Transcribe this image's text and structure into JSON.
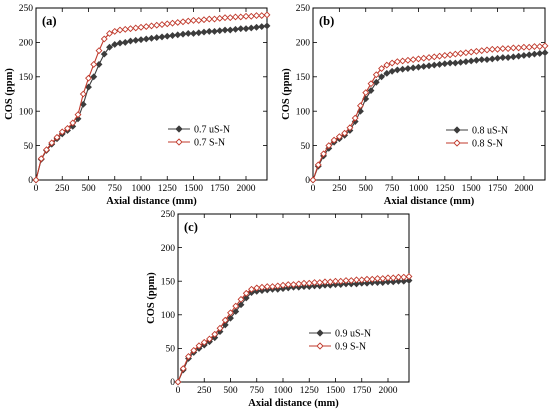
{
  "chart_data": [
    {
      "type": "line",
      "panel_label": "(a)",
      "xlabel": "Axial distance (mm)",
      "ylabel": "COS (ppm)",
      "xlim": [
        0,
        2200
      ],
      "ylim": [
        0,
        250
      ],
      "xticks": [
        0,
        250,
        500,
        750,
        1000,
        1250,
        1500,
        1750,
        2000
      ],
      "yticks": [
        0,
        50,
        100,
        150,
        200,
        250
      ],
      "grid": false,
      "legend_position": "right-middle",
      "series": [
        {
          "name": "0.7 uS-N",
          "marker": "filled-diamond",
          "color": "#3c3c3c",
          "x": [
            0,
            50,
            100,
            150,
            200,
            250,
            300,
            350,
            400,
            450,
            500,
            550,
            600,
            650,
            700,
            750,
            800,
            850,
            900,
            950,
            1000,
            1050,
            1100,
            1150,
            1200,
            1250,
            1300,
            1350,
            1400,
            1450,
            1500,
            1550,
            1600,
            1650,
            1700,
            1750,
            1800,
            1850,
            1900,
            1950,
            2000,
            2050,
            2100,
            2150,
            2200
          ],
          "y": [
            0,
            30,
            43,
            52,
            60,
            67,
            72,
            78,
            89,
            110,
            135,
            150,
            168,
            183,
            193,
            197,
            199,
            200,
            202,
            203,
            204,
            205,
            206,
            207,
            208,
            209,
            210,
            211,
            212,
            213,
            213,
            214,
            215,
            216,
            216,
            217,
            218,
            218,
            219,
            220,
            220,
            221,
            222,
            223,
            224
          ]
        },
        {
          "name": "0.7 S-N",
          "marker": "open-diamond",
          "color": "#c0392b",
          "x": [
            0,
            50,
            100,
            150,
            200,
            250,
            300,
            350,
            400,
            450,
            500,
            550,
            600,
            650,
            700,
            750,
            800,
            850,
            900,
            950,
            1000,
            1050,
            1100,
            1150,
            1200,
            1250,
            1300,
            1350,
            1400,
            1450,
            1500,
            1550,
            1600,
            1650,
            1700,
            1750,
            1800,
            1850,
            1900,
            1950,
            2000,
            2050,
            2100,
            2150,
            2200
          ],
          "y": [
            0,
            31,
            44,
            54,
            62,
            70,
            75,
            83,
            95,
            125,
            148,
            168,
            188,
            205,
            213,
            216,
            218,
            219,
            220,
            221,
            222,
            223,
            224,
            225,
            226,
            227,
            228,
            229,
            230,
            231,
            232,
            232,
            233,
            234,
            234,
            235,
            236,
            236,
            237,
            237,
            238,
            238,
            239,
            239,
            240
          ]
        }
      ]
    },
    {
      "type": "line",
      "panel_label": "(b)",
      "xlabel": "Axial distance (mm)",
      "ylabel": "COS (ppm)",
      "xlim": [
        0,
        2200
      ],
      "ylim": [
        0,
        250
      ],
      "xticks": [
        0,
        250,
        500,
        750,
        1000,
        1250,
        1500,
        1750,
        2000
      ],
      "yticks": [
        0,
        50,
        100,
        150,
        200,
        250
      ],
      "grid": false,
      "legend_position": "right-middle",
      "series": [
        {
          "name": "0.8 uS-N",
          "marker": "filled-diamond",
          "color": "#3c3c3c",
          "x": [
            0,
            50,
            100,
            150,
            200,
            250,
            300,
            350,
            400,
            450,
            500,
            550,
            600,
            650,
            700,
            750,
            800,
            850,
            900,
            950,
            1000,
            1050,
            1100,
            1150,
            1200,
            1250,
            1300,
            1350,
            1400,
            1450,
            1500,
            1550,
            1600,
            1650,
            1700,
            1750,
            1800,
            1850,
            1900,
            1950,
            2000,
            2050,
            2100,
            2150,
            2200
          ],
          "y": [
            0,
            20,
            35,
            46,
            55,
            60,
            65,
            72,
            85,
            100,
            118,
            130,
            142,
            150,
            155,
            158,
            160,
            161,
            162,
            163,
            164,
            165,
            166,
            167,
            168,
            169,
            170,
            170,
            171,
            172,
            173,
            174,
            175,
            175,
            176,
            177,
            178,
            178,
            179,
            180,
            181,
            182,
            183,
            184,
            185
          ]
        },
        {
          "name": "0.8 S-N",
          "marker": "open-diamond",
          "color": "#c0392b",
          "x": [
            0,
            50,
            100,
            150,
            200,
            250,
            300,
            350,
            400,
            450,
            500,
            550,
            600,
            650,
            700,
            750,
            800,
            850,
            900,
            950,
            1000,
            1050,
            1100,
            1150,
            1200,
            1250,
            1300,
            1350,
            1400,
            1450,
            1500,
            1550,
            1600,
            1650,
            1700,
            1750,
            1800,
            1850,
            1900,
            1950,
            2000,
            2050,
            2100,
            2150,
            2200
          ],
          "y": [
            0,
            22,
            38,
            50,
            58,
            63,
            68,
            76,
            90,
            108,
            127,
            140,
            153,
            162,
            167,
            170,
            172,
            173,
            174,
            175,
            176,
            177,
            178,
            179,
            180,
            181,
            182,
            183,
            184,
            185,
            186,
            187,
            188,
            189,
            190,
            190,
            191,
            191,
            192,
            192,
            193,
            193,
            194,
            194,
            195
          ]
        }
      ]
    },
    {
      "type": "line",
      "panel_label": "(c)",
      "xlabel": "Axial distance (mm)",
      "ylabel": "COS (ppm)",
      "xlim": [
        0,
        2200
      ],
      "ylim": [
        0,
        250
      ],
      "xticks": [
        0,
        250,
        500,
        750,
        1000,
        1250,
        1500,
        1750,
        2000
      ],
      "yticks": [
        0,
        50,
        100,
        150,
        200,
        250
      ],
      "grid": false,
      "legend_position": "right-middle",
      "series": [
        {
          "name": "0.9 uS-N",
          "marker": "filled-diamond",
          "color": "#3c3c3c",
          "x": [
            0,
            50,
            100,
            150,
            200,
            250,
            300,
            350,
            400,
            450,
            500,
            550,
            600,
            650,
            700,
            750,
            800,
            850,
            900,
            950,
            1000,
            1050,
            1100,
            1150,
            1200,
            1250,
            1300,
            1350,
            1400,
            1450,
            1500,
            1550,
            1600,
            1650,
            1700,
            1750,
            1800,
            1850,
            1900,
            1950,
            2000,
            2050,
            2100,
            2150,
            2200
          ],
          "y": [
            0,
            18,
            35,
            44,
            50,
            55,
            60,
            66,
            75,
            85,
            95,
            105,
            115,
            125,
            133,
            135,
            136,
            137,
            138,
            138,
            139,
            140,
            141,
            141,
            142,
            142,
            143,
            143,
            144,
            144,
            145,
            145,
            146,
            146,
            146,
            147,
            147,
            148,
            148,
            148,
            149,
            149,
            150,
            150,
            151
          ]
        },
        {
          "name": "0.9 S-N",
          "marker": "open-diamond",
          "color": "#c0392b",
          "x": [
            0,
            50,
            100,
            150,
            200,
            250,
            300,
            350,
            400,
            450,
            500,
            550,
            600,
            650,
            700,
            750,
            800,
            850,
            900,
            950,
            1000,
            1050,
            1100,
            1150,
            1200,
            1250,
            1300,
            1350,
            1400,
            1450,
            1500,
            1550,
            1600,
            1650,
            1700,
            1750,
            1800,
            1850,
            1900,
            1950,
            2000,
            2050,
            2100,
            2150,
            2200
          ],
          "y": [
            0,
            20,
            38,
            47,
            54,
            59,
            64,
            71,
            80,
            92,
            103,
            113,
            123,
            132,
            138,
            140,
            141,
            142,
            142,
            143,
            144,
            145,
            145,
            146,
            147,
            147,
            148,
            148,
            149,
            149,
            150,
            150,
            151,
            151,
            152,
            152,
            153,
            153,
            154,
            154,
            155,
            155,
            156,
            156,
            157
          ]
        }
      ]
    }
  ]
}
